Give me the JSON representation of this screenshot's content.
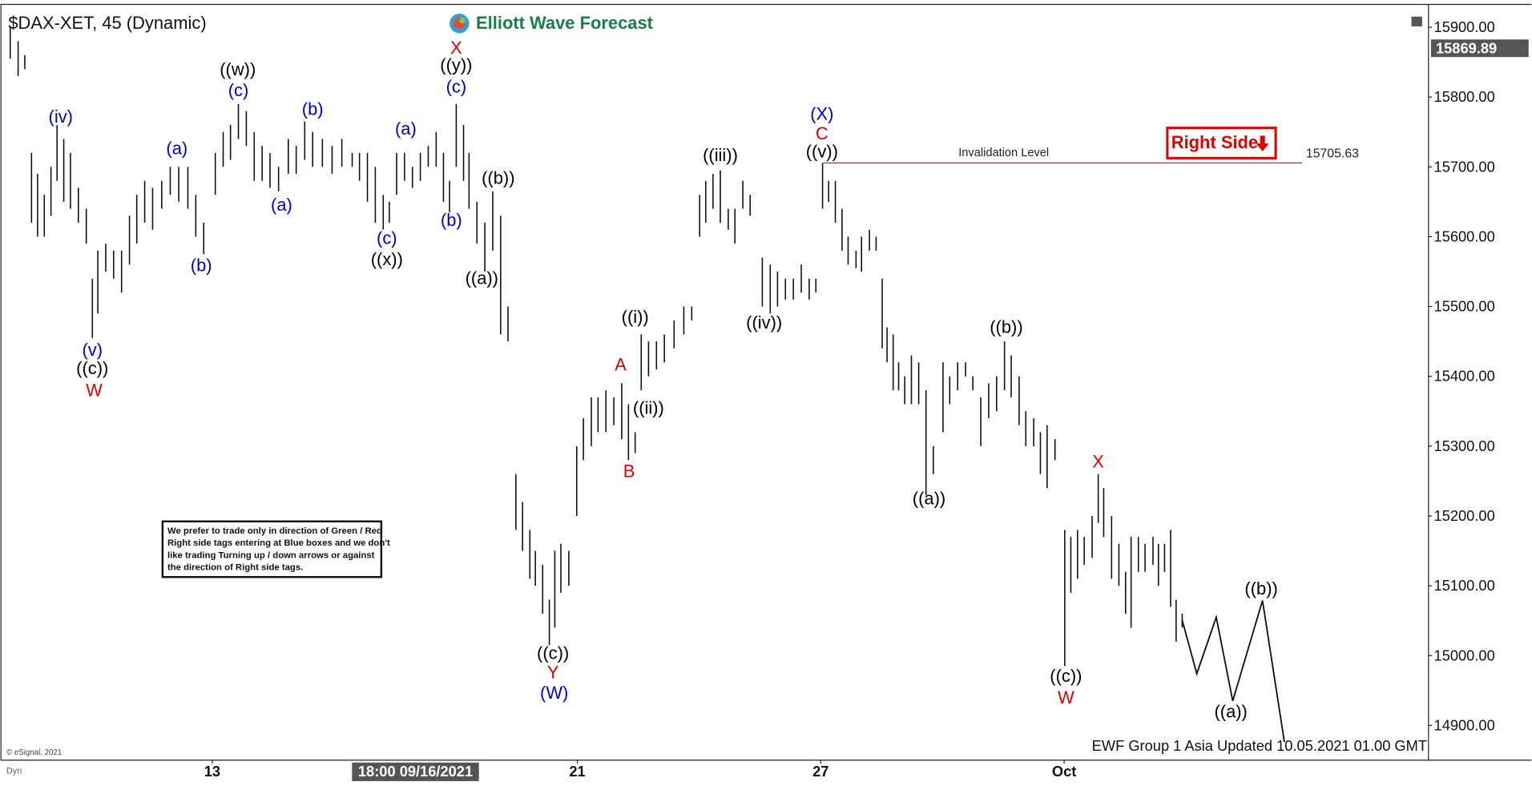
{
  "chart_data": {
    "type": "ohlc",
    "title": "$DAX-XET, 45 (Dynamic)",
    "logo": "Elliott Wave Forecast",
    "ylim": [
      14851,
      15939
    ],
    "xlim": [
      -3.48,
      19.98
    ],
    "yticks": [
      {
        "value": 14900,
        "label": "14900.00"
      },
      {
        "value": 15000,
        "label": "15000.00"
      },
      {
        "value": 15100,
        "label": "15100.00"
      },
      {
        "value": 15200,
        "label": "15200.00"
      },
      {
        "value": 15300,
        "label": "15300.00"
      },
      {
        "value": 15400,
        "label": "15400.00"
      },
      {
        "value": 15500,
        "label": "15500.00"
      },
      {
        "value": 15600,
        "label": "15600.00"
      },
      {
        "value": 15700,
        "label": "15700.00"
      },
      {
        "value": 15800,
        "label": "15800.00"
      },
      {
        "value": 15900,
        "label": "15900.00"
      }
    ],
    "xticks": [
      {
        "value": 0,
        "label": "13"
      },
      {
        "value": 6,
        "label": "21"
      },
      {
        "value": 10,
        "label": "27"
      },
      {
        "value": 14,
        "label": "Oct"
      }
    ],
    "crosshair": {
      "value": 3.34,
      "label": "18:00 09/16/2021"
    },
    "last_price": 15869.89,
    "bar_color": "#111111",
    "bars": [
      {
        "x": -3.32,
        "high": 15900,
        "low": 15855
      },
      {
        "x": -3.19,
        "high": 15880,
        "low": 15830
      },
      {
        "x": -3.08,
        "high": 15860,
        "low": 15840
      },
      {
        "x": -2.97,
        "high": 15720,
        "low": 15620
      },
      {
        "x": -2.87,
        "high": 15690,
        "low": 15600
      },
      {
        "x": -2.76,
        "high": 15660,
        "low": 15600
      },
      {
        "x": -2.65,
        "high": 15700,
        "low": 15630
      },
      {
        "x": -2.55,
        "high": 15760,
        "low": 15680
      },
      {
        "x": -2.44,
        "high": 15740,
        "low": 15650
      },
      {
        "x": -2.33,
        "high": 15720,
        "low": 15640
      },
      {
        "x": -2.2,
        "high": 15670,
        "low": 15620
      },
      {
        "x": -2.07,
        "high": 15640,
        "low": 15590
      },
      {
        "x": -1.97,
        "high": 15540,
        "low": 15455
      },
      {
        "x": -1.88,
        "high": 15580,
        "low": 15490
      },
      {
        "x": -1.75,
        "high": 15590,
        "low": 15550
      },
      {
        "x": -1.62,
        "high": 15580,
        "low": 15540
      },
      {
        "x": -1.49,
        "high": 15580,
        "low": 15520
      },
      {
        "x": -1.36,
        "high": 15630,
        "low": 15560
      },
      {
        "x": -1.24,
        "high": 15660,
        "low": 15590
      },
      {
        "x": -1.11,
        "high": 15680,
        "low": 15620
      },
      {
        "x": -0.98,
        "high": 15670,
        "low": 15610
      },
      {
        "x": -0.83,
        "high": 15680,
        "low": 15640
      },
      {
        "x": -0.69,
        "high": 15700,
        "low": 15660
      },
      {
        "x": -0.55,
        "high": 15700,
        "low": 15650
      },
      {
        "x": -0.4,
        "high": 15700,
        "low": 15640
      },
      {
        "x": -0.27,
        "high": 15660,
        "low": 15600
      },
      {
        "x": -0.14,
        "high": 15620,
        "low": 15575
      },
      {
        "x": 0.05,
        "high": 15720,
        "low": 15660
      },
      {
        "x": 0.18,
        "high": 15750,
        "low": 15700
      },
      {
        "x": 0.3,
        "high": 15760,
        "low": 15710
      },
      {
        "x": 0.43,
        "high": 15790,
        "low": 15740
      },
      {
        "x": 0.56,
        "high": 15780,
        "low": 15730
      },
      {
        "x": 0.69,
        "high": 15750,
        "low": 15680
      },
      {
        "x": 0.82,
        "high": 15730,
        "low": 15680
      },
      {
        "x": 0.95,
        "high": 15720,
        "low": 15670
      },
      {
        "x": 1.09,
        "high": 15700,
        "low": 15665
      },
      {
        "x": 1.25,
        "high": 15740,
        "low": 15690
      },
      {
        "x": 1.38,
        "high": 15730,
        "low": 15690
      },
      {
        "x": 1.52,
        "high": 15765,
        "low": 15710
      },
      {
        "x": 1.65,
        "high": 15750,
        "low": 15700
      },
      {
        "x": 1.81,
        "high": 15740,
        "low": 15700
      },
      {
        "x": 1.97,
        "high": 15730,
        "low": 15690
      },
      {
        "x": 2.13,
        "high": 15740,
        "low": 15700
      },
      {
        "x": 2.3,
        "high": 15720,
        "low": 15700
      },
      {
        "x": 2.42,
        "high": 15720,
        "low": 15680
      },
      {
        "x": 2.55,
        "high": 15720,
        "low": 15650
      },
      {
        "x": 2.68,
        "high": 15700,
        "low": 15620
      },
      {
        "x": 2.81,
        "high": 15660,
        "low": 15610
      },
      {
        "x": 2.91,
        "high": 15650,
        "low": 15620
      },
      {
        "x": 3.03,
        "high": 15720,
        "low": 15660
      },
      {
        "x": 3.16,
        "high": 15720,
        "low": 15680
      },
      {
        "x": 3.29,
        "high": 15700,
        "low": 15670
      },
      {
        "x": 3.42,
        "high": 15720,
        "low": 15680
      },
      {
        "x": 3.55,
        "high": 15730,
        "low": 15700
      },
      {
        "x": 3.68,
        "high": 15750,
        "low": 15700
      },
      {
        "x": 3.8,
        "high": 15720,
        "low": 15650
      },
      {
        "x": 3.9,
        "high": 15680,
        "low": 15635
      },
      {
        "x": 4.01,
        "high": 15790,
        "low": 15700
      },
      {
        "x": 4.13,
        "high": 15760,
        "low": 15680
      },
      {
        "x": 4.22,
        "high": 15720,
        "low": 15640
      },
      {
        "x": 4.35,
        "high": 15650,
        "low": 15590
      },
      {
        "x": 4.48,
        "high": 15620,
        "low": 15550
      },
      {
        "x": 4.61,
        "high": 15665,
        "low": 15580
      },
      {
        "x": 4.74,
        "high": 15630,
        "low": 15460
      },
      {
        "x": 4.86,
        "high": 15500,
        "low": 15450
      },
      {
        "x": 4.99,
        "high": 15260,
        "low": 15180
      },
      {
        "x": 5.1,
        "high": 15220,
        "low": 15150
      },
      {
        "x": 5.22,
        "high": 15180,
        "low": 15110
      },
      {
        "x": 5.31,
        "high": 15150,
        "low": 15100
      },
      {
        "x": 5.43,
        "high": 15130,
        "low": 15060
      },
      {
        "x": 5.54,
        "high": 15080,
        "low": 15015
      },
      {
        "x": 5.63,
        "high": 15150,
        "low": 15040
      },
      {
        "x": 5.73,
        "high": 15160,
        "low": 15090
      },
      {
        "x": 5.86,
        "high": 15150,
        "low": 15100
      },
      {
        "x": 5.99,
        "high": 15300,
        "low": 15200
      },
      {
        "x": 6.1,
        "high": 15340,
        "low": 15280
      },
      {
        "x": 6.23,
        "high": 15370,
        "low": 15300
      },
      {
        "x": 6.34,
        "high": 15370,
        "low": 15320
      },
      {
        "x": 6.47,
        "high": 15380,
        "low": 15320
      },
      {
        "x": 6.6,
        "high": 15370,
        "low": 15330
      },
      {
        "x": 6.73,
        "high": 15390,
        "low": 15310
      },
      {
        "x": 6.84,
        "high": 15360,
        "low": 15280
      },
      {
        "x": 6.95,
        "high": 15320,
        "low": 15290
      },
      {
        "x": 7.05,
        "high": 15460,
        "low": 15380
      },
      {
        "x": 7.17,
        "high": 15450,
        "low": 15400
      },
      {
        "x": 7.3,
        "high": 15450,
        "low": 15410
      },
      {
        "x": 7.43,
        "high": 15460,
        "low": 15420
      },
      {
        "x": 7.59,
        "high": 15480,
        "low": 15440
      },
      {
        "x": 7.75,
        "high": 15500,
        "low": 15460
      },
      {
        "x": 7.88,
        "high": 15500,
        "low": 15480
      },
      {
        "x": 8.01,
        "high": 15660,
        "low": 15600
      },
      {
        "x": 8.11,
        "high": 15680,
        "low": 15620
      },
      {
        "x": 8.23,
        "high": 15690,
        "low": 15640
      },
      {
        "x": 8.35,
        "high": 15695,
        "low": 15620
      },
      {
        "x": 8.48,
        "high": 15640,
        "low": 15610
      },
      {
        "x": 8.59,
        "high": 15640,
        "low": 15590
      },
      {
        "x": 8.72,
        "high": 15680,
        "low": 15640
      },
      {
        "x": 8.84,
        "high": 15660,
        "low": 15630
      },
      {
        "x": 9.04,
        "high": 15570,
        "low": 15500
      },
      {
        "x": 9.17,
        "high": 15560,
        "low": 15490
      },
      {
        "x": 9.29,
        "high": 15550,
        "low": 15500
      },
      {
        "x": 9.42,
        "high": 15540,
        "low": 15510
      },
      {
        "x": 9.55,
        "high": 15540,
        "low": 15510
      },
      {
        "x": 9.68,
        "high": 15560,
        "low": 15520
      },
      {
        "x": 9.81,
        "high": 15540,
        "low": 15510
      },
      {
        "x": 9.92,
        "high": 15540,
        "low": 15520
      },
      {
        "x": 10.03,
        "high": 15705,
        "low": 15640
      },
      {
        "x": 10.13,
        "high": 15680,
        "low": 15650
      },
      {
        "x": 10.24,
        "high": 15680,
        "low": 15620
      },
      {
        "x": 10.35,
        "high": 15640,
        "low": 15580
      },
      {
        "x": 10.45,
        "high": 15600,
        "low": 15560
      },
      {
        "x": 10.58,
        "high": 15580,
        "low": 15555
      },
      {
        "x": 10.67,
        "high": 15600,
        "low": 15550
      },
      {
        "x": 10.8,
        "high": 15610,
        "low": 15580
      },
      {
        "x": 10.91,
        "high": 15600,
        "low": 15580
      },
      {
        "x": 11.01,
        "high": 15540,
        "low": 15440
      },
      {
        "x": 11.09,
        "high": 15470,
        "low": 15420
      },
      {
        "x": 11.19,
        "high": 15460,
        "low": 15380
      },
      {
        "x": 11.28,
        "high": 15420,
        "low": 15380
      },
      {
        "x": 11.38,
        "high": 15400,
        "low": 15360
      },
      {
        "x": 11.49,
        "high": 15430,
        "low": 15360
      },
      {
        "x": 11.61,
        "high": 15420,
        "low": 15360
      },
      {
        "x": 11.73,
        "high": 15380,
        "low": 15230
      },
      {
        "x": 11.85,
        "high": 15300,
        "low": 15260
      },
      {
        "x": 12.01,
        "high": 15420,
        "low": 15320
      },
      {
        "x": 12.12,
        "high": 15400,
        "low": 15360
      },
      {
        "x": 12.25,
        "high": 15420,
        "low": 15380
      },
      {
        "x": 12.38,
        "high": 15420,
        "low": 15400
      },
      {
        "x": 12.5,
        "high": 15400,
        "low": 15380
      },
      {
        "x": 12.63,
        "high": 15370,
        "low": 15300
      },
      {
        "x": 12.76,
        "high": 15390,
        "low": 15340
      },
      {
        "x": 12.89,
        "high": 15400,
        "low": 15350
      },
      {
        "x": 13.02,
        "high": 15450,
        "low": 15380
      },
      {
        "x": 13.13,
        "high": 15430,
        "low": 15370
      },
      {
        "x": 13.26,
        "high": 15400,
        "low": 15330
      },
      {
        "x": 13.37,
        "high": 15350,
        "low": 15300
      },
      {
        "x": 13.5,
        "high": 15340,
        "low": 15300
      },
      {
        "x": 13.61,
        "high": 15320,
        "low": 15260
      },
      {
        "x": 13.72,
        "high": 15330,
        "low": 15240
      },
      {
        "x": 13.85,
        "high": 15310,
        "low": 15280
      },
      {
        "x": 14.01,
        "high": 15180,
        "low": 14985
      },
      {
        "x": 14.11,
        "high": 15170,
        "low": 15090
      },
      {
        "x": 14.22,
        "high": 15180,
        "low": 15110
      },
      {
        "x": 14.33,
        "high": 15170,
        "low": 15130
      },
      {
        "x": 14.46,
        "high": 15200,
        "low": 15140
      },
      {
        "x": 14.56,
        "high": 15260,
        "low": 15190
      },
      {
        "x": 14.65,
        "high": 15240,
        "low": 15170
      },
      {
        "x": 14.78,
        "high": 15200,
        "low": 15110
      },
      {
        "x": 14.9,
        "high": 15160,
        "low": 15100
      },
      {
        "x": 15.01,
        "high": 15120,
        "low": 15060
      },
      {
        "x": 15.1,
        "high": 15170,
        "low": 15040
      },
      {
        "x": 15.22,
        "high": 15170,
        "low": 15120
      },
      {
        "x": 15.33,
        "high": 15160,
        "low": 15120
      },
      {
        "x": 15.46,
        "high": 15170,
        "low": 15130
      },
      {
        "x": 15.55,
        "high": 15160,
        "low": 15100
      },
      {
        "x": 15.65,
        "high": 15160,
        "low": 15120
      },
      {
        "x": 15.75,
        "high": 15180,
        "low": 15070
      },
      {
        "x": 15.84,
        "high": 15080,
        "low": 15020
      },
      {
        "x": 15.94,
        "high": 15060,
        "low": 15040
      }
    ],
    "projection": {
      "color": "#111111",
      "x": [
        15.94,
        16.18,
        16.5,
        16.77,
        17.26,
        17.62
      ],
      "y": [
        15051,
        14974,
        15055,
        14935,
        15079,
        14876
      ]
    },
    "invalidation": {
      "label": "Invalidation Level",
      "value": 15705.63,
      "x_start": 10.03,
      "x_end": 17.91,
      "color": "#d02020"
    },
    "wave_labels": [
      {
        "text": "(iv)",
        "x": -2.49,
        "y": 15770,
        "color": "#0000cc"
      },
      {
        "text": "((w))",
        "x": 0.42,
        "y": 15838,
        "color": "#000000"
      },
      {
        "text": "(c)",
        "x": 0.43,
        "y": 15808,
        "color": "#0000cc"
      },
      {
        "text": "(a)",
        "x": -0.58,
        "y": 15725,
        "color": "#0000cc"
      },
      {
        "text": "(b)",
        "x": 1.65,
        "y": 15781,
        "color": "#0000cc"
      },
      {
        "text": "(a)",
        "x": 1.14,
        "y": 15644,
        "color": "#0000cc"
      },
      {
        "text": "(b)",
        "x": -0.18,
        "y": 15557,
        "color": "#0000cc"
      },
      {
        "text": "(a)",
        "x": 3.18,
        "y": 15753,
        "color": "#0000cc"
      },
      {
        "text": "(c)",
        "x": 2.87,
        "y": 15596,
        "color": "#0000cc"
      },
      {
        "text": "((x))",
        "x": 2.87,
        "y": 15566,
        "color": "#000000"
      },
      {
        "text": "X",
        "x": 4.01,
        "y": 15869,
        "color": "#e00000"
      },
      {
        "text": "((y))",
        "x": 4.01,
        "y": 15844,
        "color": "#000000"
      },
      {
        "text": "(c)",
        "x": 4.01,
        "y": 15813,
        "color": "#0000cc"
      },
      {
        "text": "(b)",
        "x": 3.93,
        "y": 15622,
        "color": "#0000cc"
      },
      {
        "text": "((b))",
        "x": 4.7,
        "y": 15682,
        "color": "#000000"
      },
      {
        "text": "((a))",
        "x": 4.43,
        "y": 15539,
        "color": "#000000"
      },
      {
        "text": "(v)",
        "x": -1.97,
        "y": 15436,
        "color": "#0000cc"
      },
      {
        "text": "((c))",
        "x": -1.97,
        "y": 15410,
        "color": "#000000"
      },
      {
        "text": "W",
        "x": -1.94,
        "y": 15378,
        "color": "#e00000"
      },
      {
        "text": "((c))",
        "x": 5.6,
        "y": 15002,
        "color": "#000000"
      },
      {
        "text": "Y",
        "x": 5.6,
        "y": 14974,
        "color": "#e00000"
      },
      {
        "text": "(W)",
        "x": 5.62,
        "y": 14945,
        "color": "#0000cc"
      },
      {
        "text": "((i))",
        "x": 6.95,
        "y": 15483,
        "color": "#000000"
      },
      {
        "text": "A",
        "x": 6.71,
        "y": 15415,
        "color": "#e00000"
      },
      {
        "text": "((ii))",
        "x": 7.17,
        "y": 15353,
        "color": "#000000"
      },
      {
        "text": "B",
        "x": 6.85,
        "y": 15262,
        "color": "#e00000"
      },
      {
        "text": "((iii))",
        "x": 8.35,
        "y": 15715,
        "color": "#000000"
      },
      {
        "text": "((iv))",
        "x": 9.07,
        "y": 15475,
        "color": "#000000"
      },
      {
        "text": "(X)",
        "x": 10.02,
        "y": 15774,
        "color": "#0000cc"
      },
      {
        "text": "C",
        "x": 10.02,
        "y": 15746,
        "color": "#e00000"
      },
      {
        "text": "((v))",
        "x": 10.02,
        "y": 15720,
        "color": "#000000"
      },
      {
        "text": "((a))",
        "x": 11.78,
        "y": 15223,
        "color": "#000000"
      },
      {
        "text": "((b))",
        "x": 13.05,
        "y": 15469,
        "color": "#000000"
      },
      {
        "text": "X",
        "x": 14.56,
        "y": 15276,
        "color": "#e00000"
      },
      {
        "text": "((c))",
        "x": 14.03,
        "y": 14969,
        "color": "#000000"
      },
      {
        "text": "W",
        "x": 14.03,
        "y": 14938,
        "color": "#e00000"
      },
      {
        "text": "((a))",
        "x": 16.74,
        "y": 14918,
        "color": "#000000"
      },
      {
        "text": "((b))",
        "x": 17.24,
        "y": 15094,
        "color": "#000000"
      }
    ],
    "right_side_tag": "Right Side",
    "note_lines": [
      "We prefer to trade only in direction of Green / Red",
      "Right side tags entering at Blue boxes and we don't",
      "like trading Turning up / down arrows or against",
      "the direction of Right side tags."
    ],
    "footer": "EWF Group 1 Asia Updated 10.05.2021 01.00 GMT",
    "copyright": "© eSignal, 2021",
    "mode_label": "Dyn"
  }
}
